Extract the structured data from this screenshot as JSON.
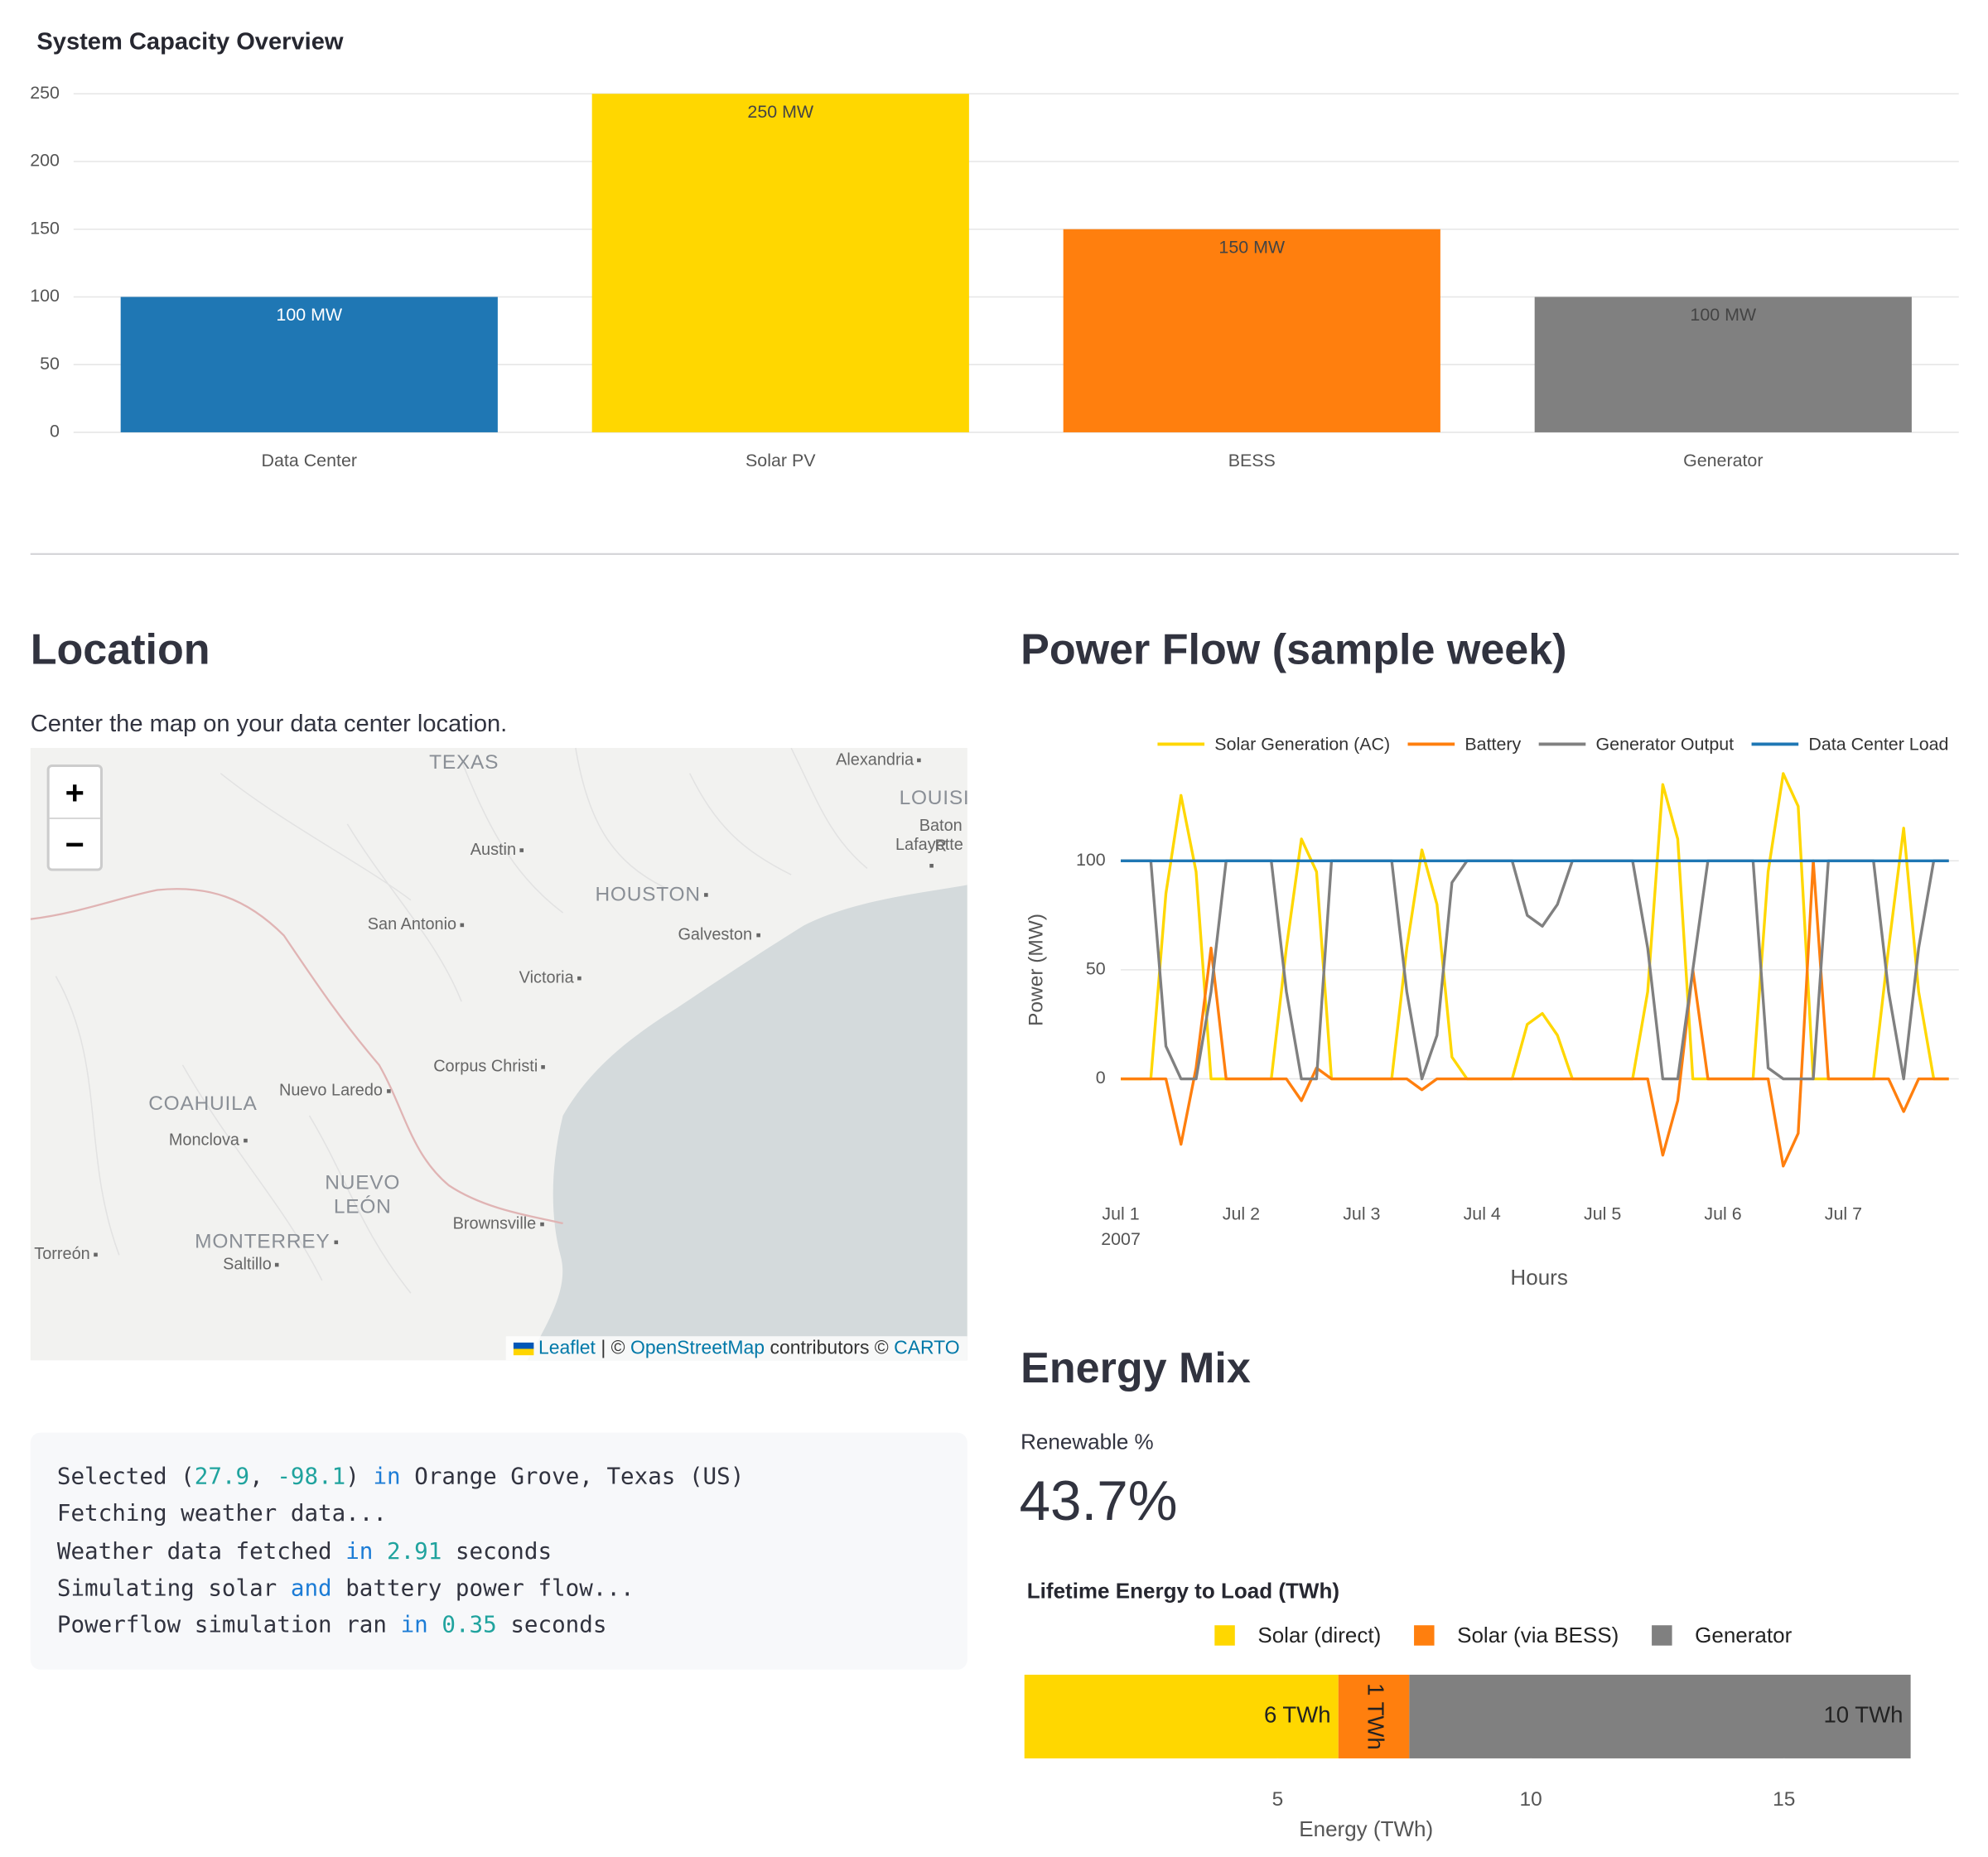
{
  "chart_data": [
    {
      "type": "bar",
      "title": "System Capacity Overview",
      "categories": [
        "Data Center",
        "Solar PV",
        "BESS",
        "Generator"
      ],
      "values": [
        100,
        250,
        150,
        100
      ],
      "value_labels": [
        "100 MW",
        "250 MW",
        "150 MW",
        "100 MW"
      ],
      "colors": [
        "#1f77b4",
        "#ffd700",
        "#ff7f0e",
        "#808080"
      ],
      "ylim": [
        0,
        250
      ],
      "yticks": [
        0,
        50,
        100,
        150,
        200,
        250
      ],
      "grid": true
    },
    {
      "type": "line",
      "title": "Power Flow (sample week)",
      "x_label": "Hours",
      "y_label": "Power (MW)",
      "x": [
        0,
        3,
        6,
        9,
        12,
        15,
        18,
        21,
        24,
        27,
        30,
        33,
        36,
        39,
        42,
        45,
        48,
        51,
        54,
        57,
        60,
        63,
        66,
        69,
        72,
        75,
        78,
        81,
        84,
        87,
        90,
        93,
        96,
        99,
        102,
        105,
        108,
        111,
        114,
        117,
        120,
        123,
        126,
        129,
        132,
        135,
        138,
        141,
        144,
        147,
        150,
        153,
        156,
        159,
        162,
        165
      ],
      "xlim": [
        0,
        167
      ],
      "xticks": [
        {
          "value": 0,
          "label": "Jul 1\n2007"
        },
        {
          "value": 24,
          "label": "Jul 2"
        },
        {
          "value": 48,
          "label": "Jul 3"
        },
        {
          "value": 72,
          "label": "Jul 4"
        },
        {
          "value": 96,
          "label": "Jul 5"
        },
        {
          "value": 120,
          "label": "Jul 6"
        },
        {
          "value": 144,
          "label": "Jul 7"
        }
      ],
      "ylim": [
        -50,
        145
      ],
      "yticks": [
        0,
        50,
        100
      ],
      "grid": true,
      "legend": "top",
      "series": [
        {
          "name": "Solar Generation (AC)",
          "color": "#ffd700",
          "values": [
            0,
            0,
            0,
            85,
            130,
            95,
            0,
            0,
            0,
            0,
            0,
            60,
            110,
            95,
            0,
            0,
            0,
            0,
            0,
            60,
            105,
            80,
            10,
            0,
            0,
            0,
            0,
            25,
            30,
            20,
            0,
            0,
            0,
            0,
            0,
            40,
            135,
            110,
            0,
            0,
            0,
            0,
            0,
            95,
            140,
            125,
            0,
            0,
            0,
            0,
            0,
            60,
            115,
            40,
            0,
            0
          ]
        },
        {
          "name": "Battery",
          "color": "#ff7f0e",
          "values": [
            0,
            0,
            0,
            0,
            -30,
            5,
            60,
            0,
            0,
            0,
            0,
            0,
            -10,
            5,
            0,
            0,
            0,
            0,
            0,
            0,
            -5,
            0,
            0,
            0,
            0,
            0,
            0,
            0,
            0,
            0,
            0,
            0,
            0,
            0,
            0,
            0,
            -35,
            -10,
            50,
            0,
            0,
            0,
            0,
            0,
            -40,
            -25,
            100,
            0,
            0,
            0,
            0,
            0,
            -15,
            0,
            0,
            0
          ]
        },
        {
          "name": "Generator Output",
          "color": "#808080",
          "values": [
            100,
            100,
            100,
            15,
            0,
            0,
            40,
            100,
            100,
            100,
            100,
            40,
            0,
            0,
            100,
            100,
            100,
            100,
            100,
            40,
            0,
            20,
            90,
            100,
            100,
            100,
            100,
            75,
            70,
            80,
            100,
            100,
            100,
            100,
            100,
            60,
            0,
            0,
            50,
            100,
            100,
            100,
            100,
            5,
            0,
            0,
            0,
            100,
            100,
            100,
            100,
            40,
            0,
            60,
            100,
            100
          ]
        },
        {
          "name": "Data Center Load",
          "color": "#1f77b4",
          "values": [
            100,
            100,
            100,
            100,
            100,
            100,
            100,
            100,
            100,
            100,
            100,
            100,
            100,
            100,
            100,
            100,
            100,
            100,
            100,
            100,
            100,
            100,
            100,
            100,
            100,
            100,
            100,
            100,
            100,
            100,
            100,
            100,
            100,
            100,
            100,
            100,
            100,
            100,
            100,
            100,
            100,
            100,
            100,
            100,
            100,
            100,
            100,
            100,
            100,
            100,
            100,
            100,
            100,
            100,
            100,
            100
          ]
        }
      ]
    },
    {
      "type": "stacked_hbar",
      "title": "Lifetime Energy to Load (TWh)",
      "x_label": "Energy (TWh)",
      "xlim": [
        0,
        17.5
      ],
      "xticks": [
        5,
        10,
        15
      ],
      "legend": "top",
      "series": [
        {
          "name": "Solar (direct)",
          "color": "#ffd700",
          "values": [
            6.2
          ],
          "value_labels": [
            "6 TWh"
          ]
        },
        {
          "name": "Solar (via BESS)",
          "color": "#ff7f0e",
          "values": [
            1.4
          ],
          "value_labels": [
            "1 TWh"
          ]
        },
        {
          "name": "Generator",
          "color": "#808080",
          "values": [
            9.9
          ],
          "value_labels": [
            "10 TWh"
          ]
        }
      ]
    }
  ],
  "location": {
    "heading": "Location",
    "caption": "Center the map on your data center location.",
    "map": {
      "labels": [
        "TEXAS",
        "LOUISI",
        "Alexandria",
        "Austin",
        "Baton R",
        "Lafayette",
        "San Antonio",
        "HOUSTON",
        "Galveston",
        "Victoria",
        "Corpus Christi",
        "Nuevo Laredo",
        "COAHUILA",
        "Monclova",
        "NUEVO\nLEÓN",
        "Brownsville",
        "MONTERREY",
        "Saltillo",
        "Torreón"
      ],
      "zoom_in": "+",
      "zoom_out": "−",
      "attribution": [
        "Leaflet",
        "| ©",
        "OpenStreetMap",
        "contributors ©",
        "CARTO"
      ]
    }
  },
  "log": [
    "Selected (27.9, -98.1) in Orange Grove, Texas (US)",
    "Fetching weather data...",
    "Weather data fetched in 2.91 seconds",
    "Simulating solar and battery power flow...",
    "Powerflow simulation ran in 0.35 seconds"
  ],
  "energy_mix": {
    "heading": "Energy Mix",
    "metric_label": "Renewable %",
    "metric_value": "43.7%"
  }
}
